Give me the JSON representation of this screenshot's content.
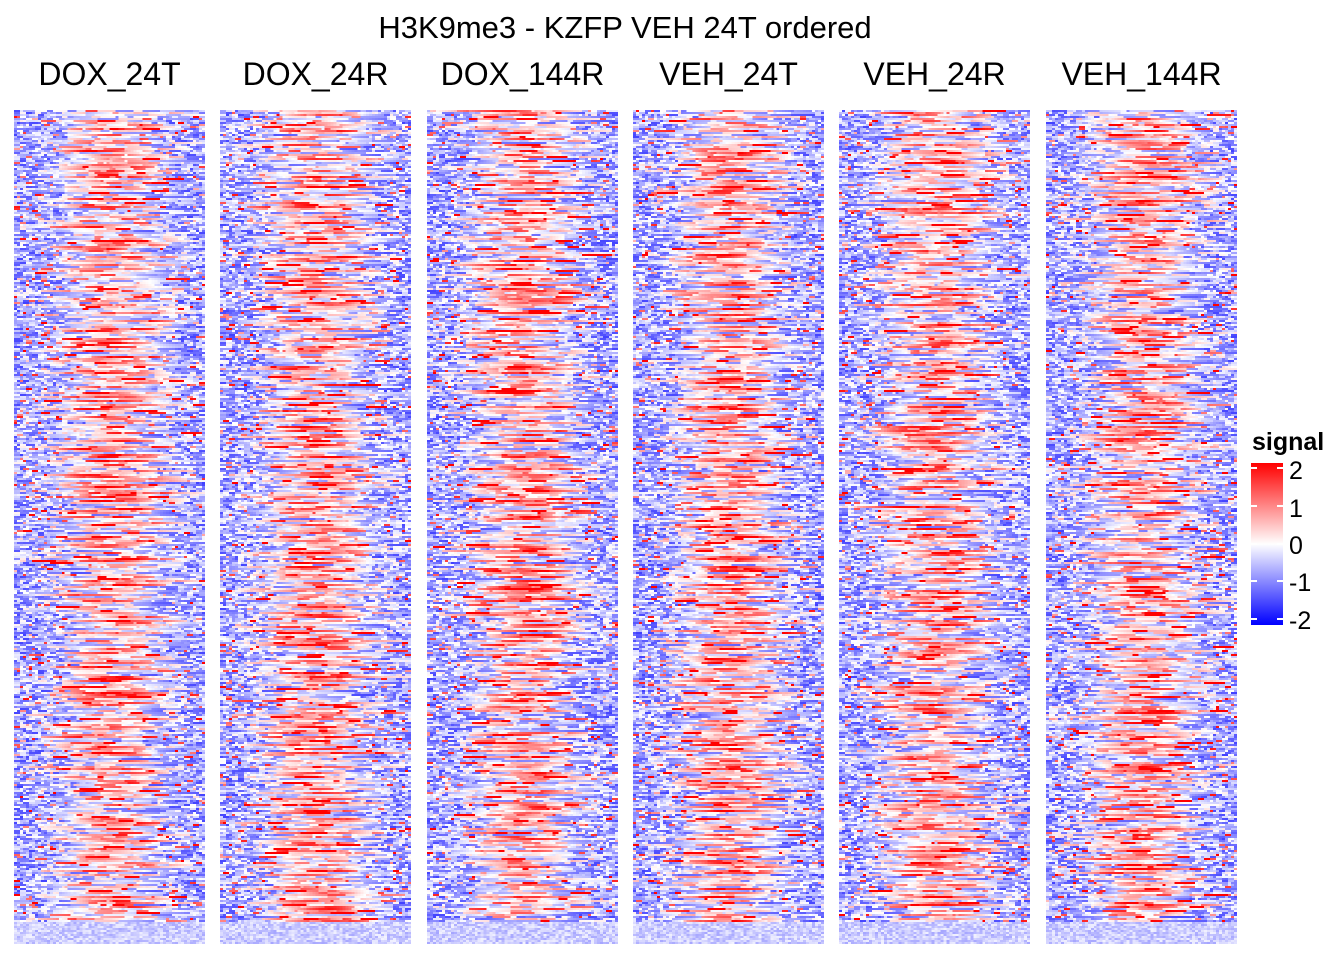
{
  "chart_data": {
    "type": "heatmap",
    "title": "H3K9me3 - KZFP VEH 24T ordered",
    "panels": [
      "DOX_24T",
      "DOX_24R",
      "DOX_144R",
      "VEH_24T",
      "VEH_24R",
      "VEH_144R"
    ],
    "ordering": "VEH 24T",
    "legend": {
      "title": "signal",
      "ticks": [
        "2",
        "1",
        "0",
        "-1",
        "-2"
      ],
      "range": [
        -2,
        2
      ],
      "colors": {
        "low": "#0000ff",
        "mid": "#ffffff",
        "high": "#ff0000"
      },
      "placement": "right"
    },
    "description_pattern": "per-row signal enriched (red) in central bins, depleted (blue) at flanks"
  }
}
